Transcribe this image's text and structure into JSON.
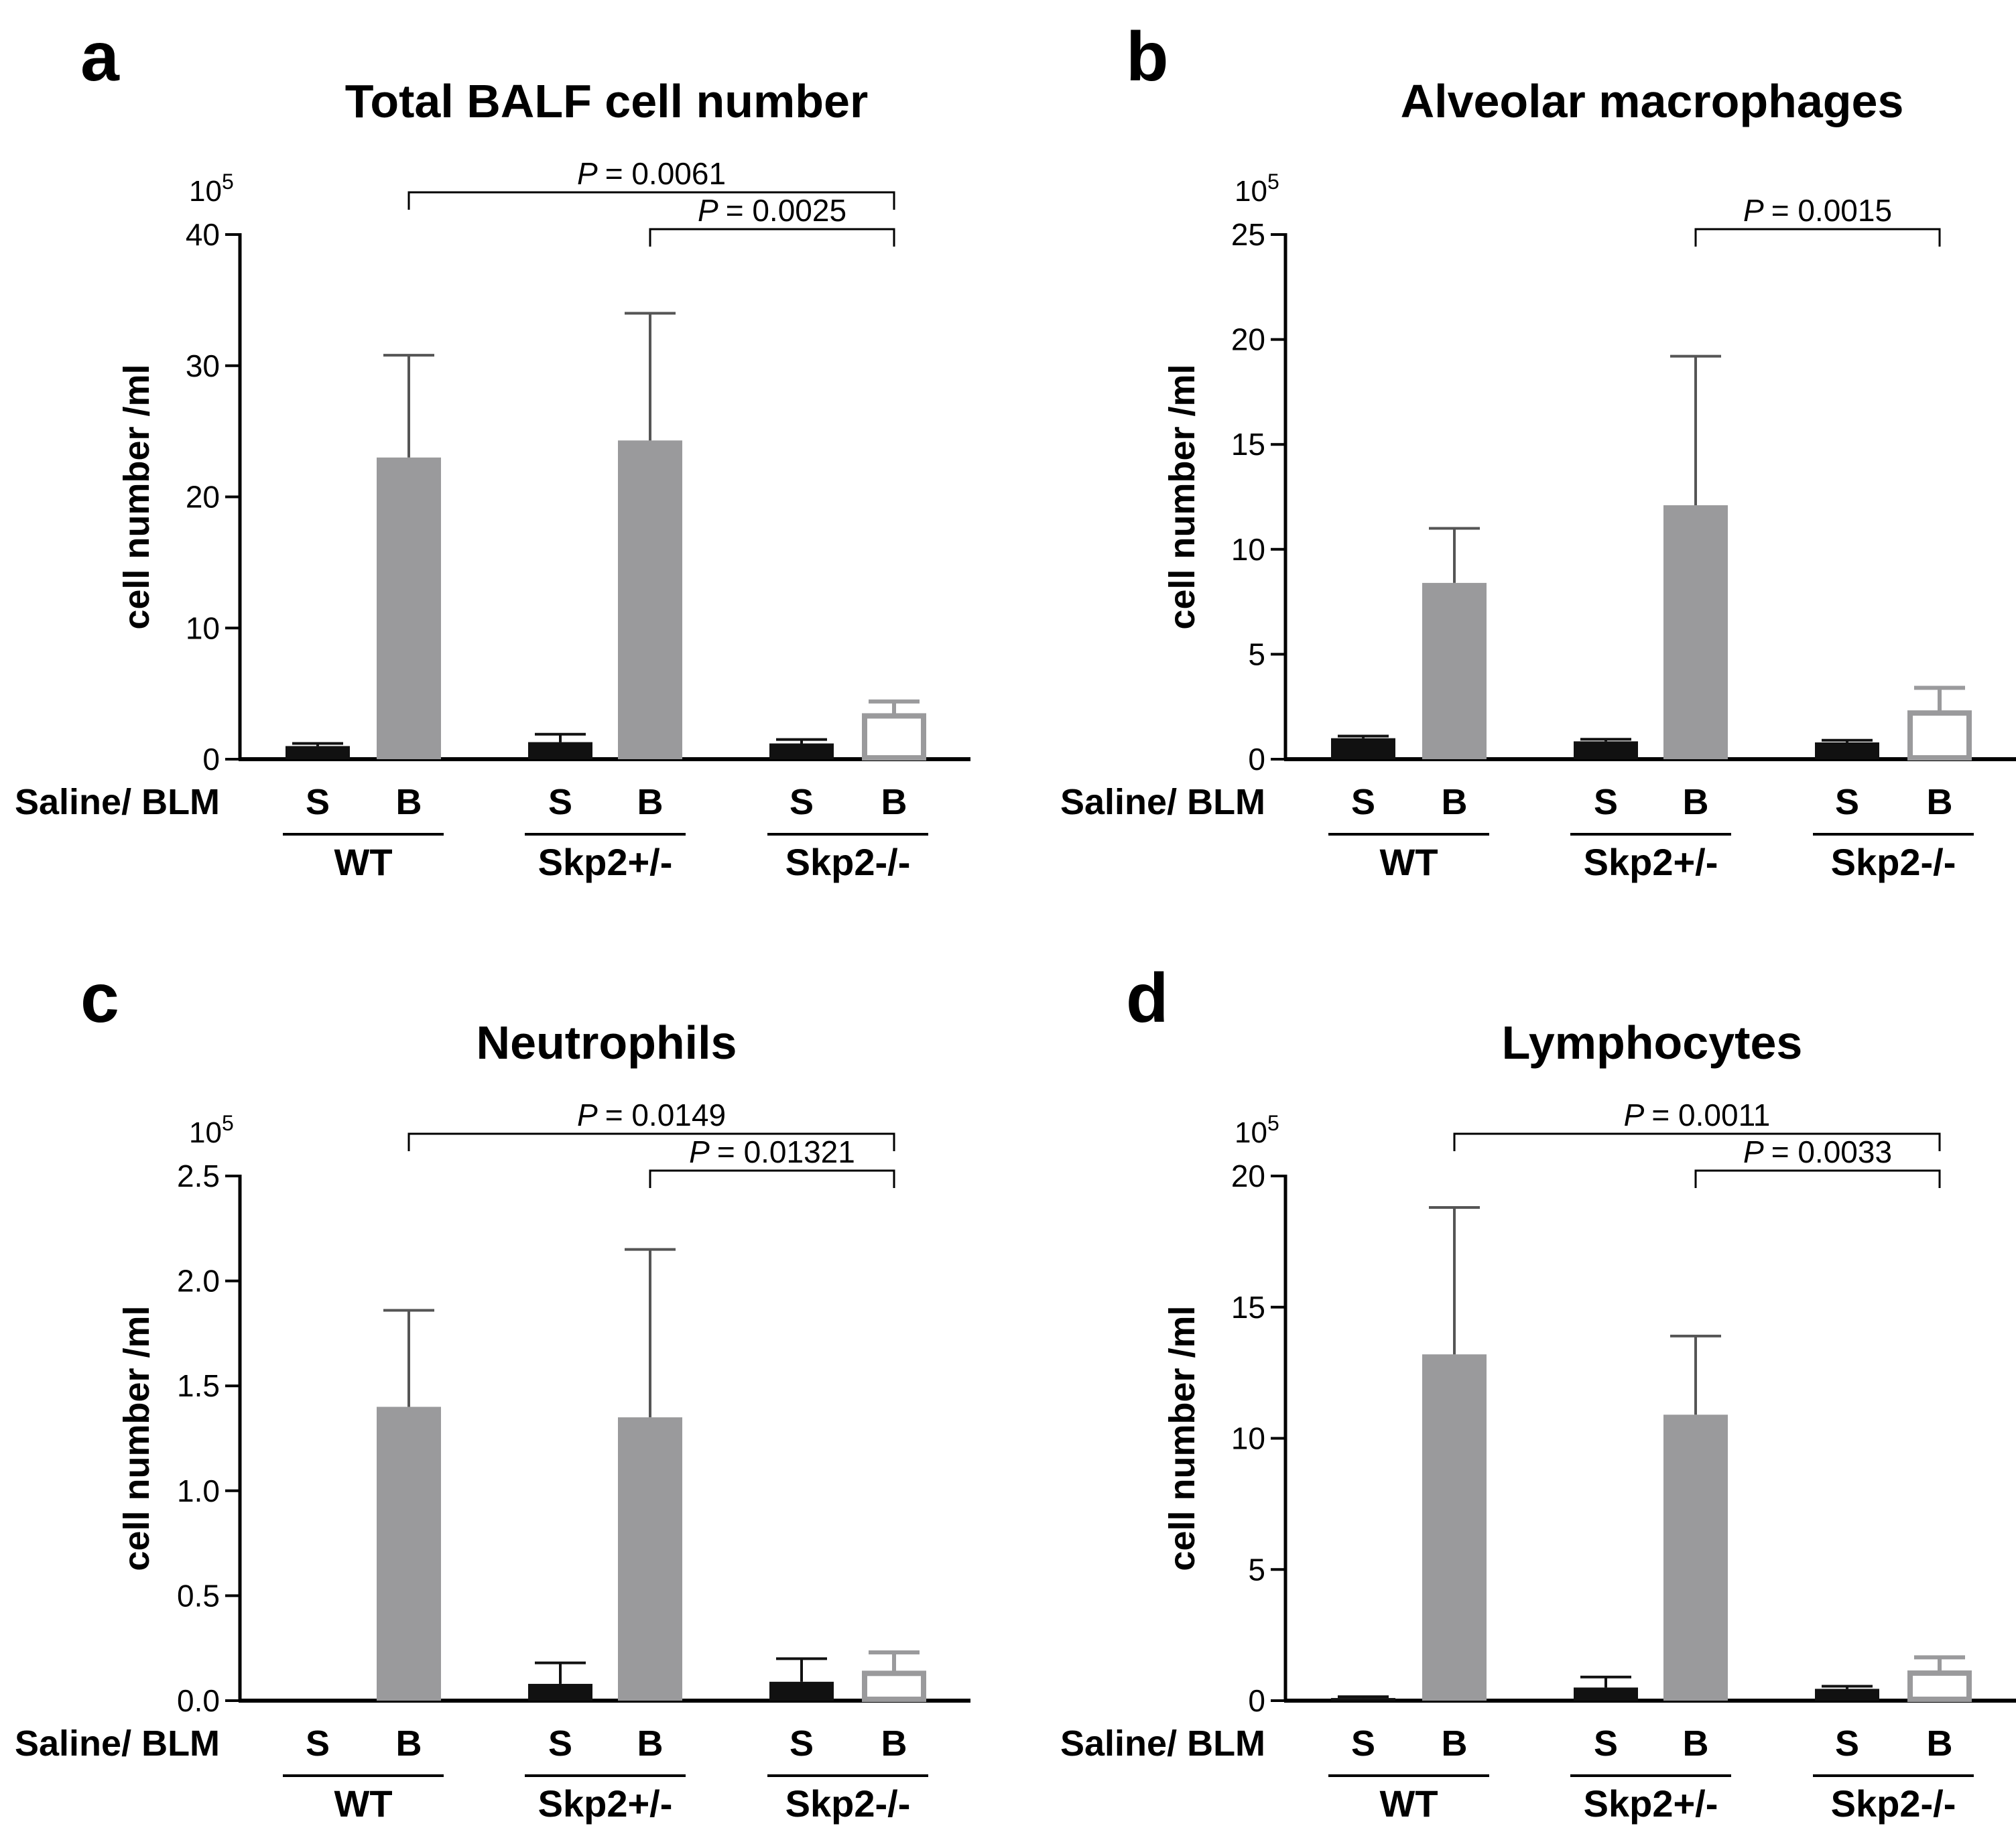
{
  "figure": {
    "groups": [
      "WT",
      "Skp2+/-",
      "Skp2-/-"
    ],
    "treatments": [
      "S",
      "B"
    ],
    "row_label": "Saline/ BLM"
  },
  "chart_data": [
    {
      "panel": "a",
      "type": "bar",
      "title": "Total BALF cell number",
      "ylabel": "cell number /ml",
      "y_multiplier": "10",
      "y_exponent": "5",
      "ylim": [
        0,
        40
      ],
      "yticks": [
        "0",
        "10",
        "20",
        "30",
        "40"
      ],
      "categories": [
        "S",
        "B",
        "S",
        "B",
        "S",
        "B"
      ],
      "values": [
        1.0,
        23.0,
        1.3,
        24.3,
        1.2,
        3.3
      ],
      "errors": [
        0.2,
        7.8,
        0.6,
        9.7,
        0.3,
        1.1
      ],
      "styles": [
        "black",
        "gray",
        "black",
        "gray",
        "black",
        "open"
      ],
      "comparisons": [
        {
          "label": "P",
          "value": "= 0.0061",
          "from_bar": 1,
          "to_bar": 5,
          "level": 2
        },
        {
          "label": "P",
          "value": "= 0.0025",
          "from_bar": 3,
          "to_bar": 5,
          "level": 1
        }
      ]
    },
    {
      "panel": "b",
      "type": "bar",
      "title": "Alveolar macrophages",
      "ylabel": "cell number /ml",
      "y_multiplier": "10",
      "y_exponent": "5",
      "ylim": [
        0,
        25
      ],
      "yticks": [
        "0",
        "5",
        "10",
        "15",
        "20",
        "25"
      ],
      "categories": [
        "S",
        "B",
        "S",
        "B",
        "S",
        "B"
      ],
      "values": [
        1.0,
        8.4,
        0.85,
        12.1,
        0.8,
        2.2
      ],
      "errors": [
        0.1,
        2.6,
        0.1,
        7.1,
        0.1,
        1.2
      ],
      "styles": [
        "black",
        "gray",
        "black",
        "gray",
        "black",
        "open"
      ],
      "comparisons": [
        {
          "label": "P",
          "value": "= 0.0015",
          "from_bar": 3,
          "to_bar": 5,
          "level": 1
        }
      ]
    },
    {
      "panel": "c",
      "type": "bar",
      "title": "Neutrophils",
      "ylabel": "cell number /ml",
      "y_multiplier": "10",
      "y_exponent": "5",
      "ylim": [
        0,
        2.5
      ],
      "yticks": [
        "0.0",
        "0.5",
        "1.0",
        "1.5",
        "2.0",
        "2.5"
      ],
      "categories": [
        "S",
        "B",
        "S",
        "B",
        "S",
        "B"
      ],
      "values": [
        0.0,
        1.4,
        0.08,
        1.35,
        0.09,
        0.13
      ],
      "errors": [
        0.0,
        0.46,
        0.1,
        0.8,
        0.11,
        0.1
      ],
      "styles": [
        "black",
        "gray",
        "black",
        "gray",
        "black",
        "open"
      ],
      "comparisons": [
        {
          "label": "P",
          "value": "= 0.0149",
          "from_bar": 1,
          "to_bar": 5,
          "level": 2
        },
        {
          "label": "P",
          "value": "= 0.01321",
          "from_bar": 3,
          "to_bar": 5,
          "level": 1
        }
      ]
    },
    {
      "panel": "d",
      "type": "bar",
      "title": "Lymphocytes",
      "ylabel": "cell number /ml",
      "y_multiplier": "10",
      "y_exponent": "5",
      "ylim": [
        0,
        20
      ],
      "yticks": [
        "0",
        "5",
        "10",
        "15",
        "20"
      ],
      "categories": [
        "S",
        "B",
        "S",
        "B",
        "S",
        "B"
      ],
      "values": [
        0.1,
        13.2,
        0.5,
        10.9,
        0.45,
        1.05
      ],
      "errors": [
        0.05,
        5.6,
        0.4,
        3.0,
        0.1,
        0.6
      ],
      "styles": [
        "black",
        "gray",
        "black",
        "gray",
        "black",
        "open"
      ],
      "comparisons": [
        {
          "label": "P",
          "value": "= 0.0011",
          "from_bar": 1,
          "to_bar": 5,
          "level": 2
        },
        {
          "label": "P",
          "value": "= 0.0033",
          "from_bar": 3,
          "to_bar": 5,
          "level": 1
        }
      ]
    }
  ],
  "colors": {
    "black": "#111111",
    "gray": "#9a9a9c",
    "open_stroke": "#9a9a9c",
    "axis": "#000000"
  }
}
